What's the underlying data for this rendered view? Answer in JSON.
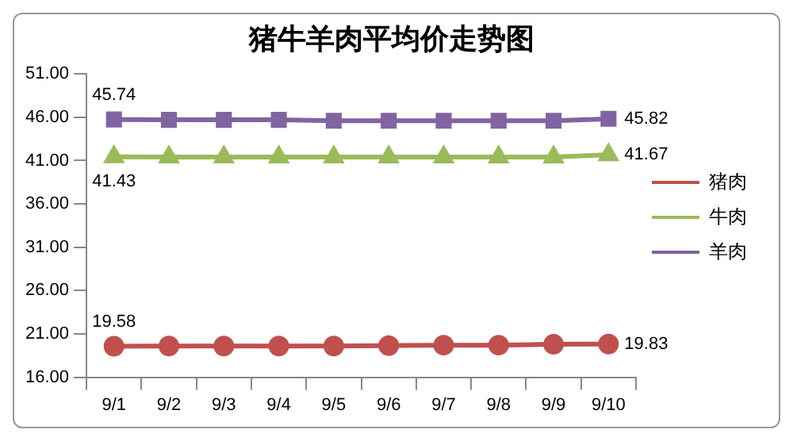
{
  "chart_data": {
    "type": "line",
    "title": "猪牛羊肉平均价走势图",
    "categories": [
      "9/1",
      "9/2",
      "9/3",
      "9/4",
      "9/5",
      "9/6",
      "9/7",
      "9/8",
      "9/9",
      "9/10"
    ],
    "series": [
      {
        "name": "猪肉",
        "color": "#c0504d",
        "marker": "circle",
        "values": [
          19.58,
          19.6,
          19.6,
          19.6,
          19.6,
          19.65,
          19.7,
          19.7,
          19.8,
          19.83
        ],
        "value_labels": [
          "19.58",
          null,
          null,
          null,
          null,
          null,
          null,
          null,
          null,
          "19.83"
        ]
      },
      {
        "name": "牛肉",
        "color": "#9bbb59",
        "marker": "triangle",
        "values": [
          41.43,
          41.4,
          41.4,
          41.4,
          41.4,
          41.4,
          41.4,
          41.4,
          41.4,
          41.67
        ],
        "value_labels": [
          "41.43",
          null,
          null,
          null,
          null,
          null,
          null,
          null,
          null,
          "41.67"
        ]
      },
      {
        "name": "羊肉",
        "color": "#8064a2",
        "marker": "square",
        "values": [
          45.74,
          45.7,
          45.7,
          45.7,
          45.6,
          45.6,
          45.6,
          45.6,
          45.6,
          45.82
        ],
        "value_labels": [
          "45.74",
          null,
          null,
          null,
          null,
          null,
          null,
          null,
          null,
          "45.82"
        ]
      }
    ],
    "ylim": [
      16,
      51
    ],
    "yticks": [
      {
        "value": 16,
        "label": "16.00"
      },
      {
        "value": 21,
        "label": "21.00"
      },
      {
        "value": 26,
        "label": "26.00"
      },
      {
        "value": 31,
        "label": "31.00"
      },
      {
        "value": 36,
        "label": "36.00"
      },
      {
        "value": 41,
        "label": "41.00"
      },
      {
        "value": 46,
        "label": "46.00"
      },
      {
        "value": 51,
        "label": "51.00"
      }
    ],
    "grid": false,
    "legend": "right",
    "line_style": "solid"
  }
}
